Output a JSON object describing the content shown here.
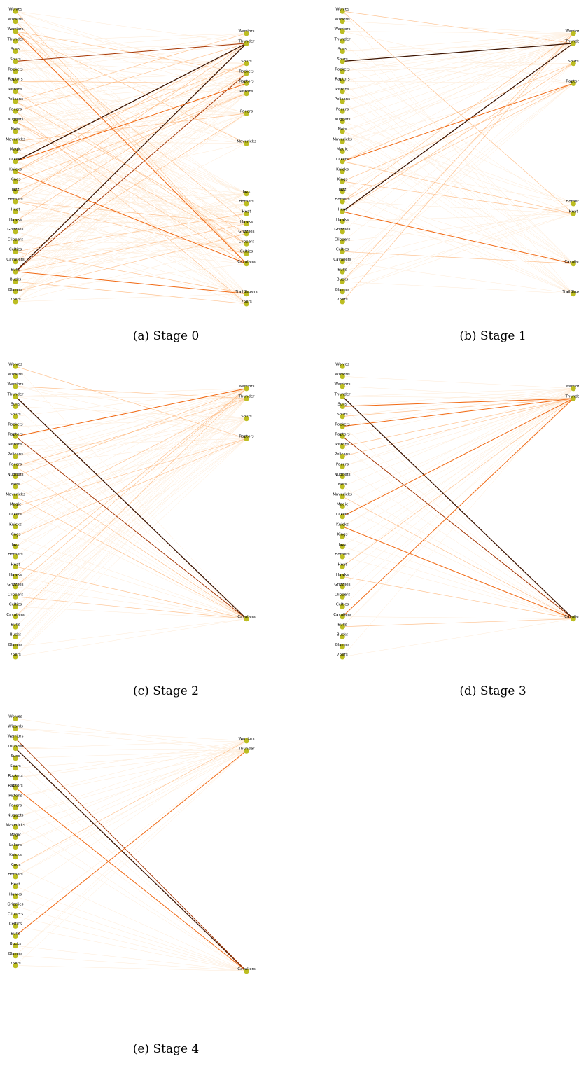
{
  "colors": {
    "node": "#bcbd22",
    "edge_scale": [
      "#fee6ce",
      "#fdae6b",
      "#f16913",
      "#a63603",
      "#3d1400"
    ]
  },
  "left_nodes": [
    "Wolves",
    "Wizards",
    "Warriors",
    "Thunder",
    "Suns",
    "Spurs",
    "Rockets",
    "Raptors",
    "Pistons",
    "Pelicans",
    "Pacers",
    "Nuggets",
    "Nets",
    "Mavericks",
    "Magic",
    "Lakers",
    "Knicks",
    "Kings",
    "Jazz",
    "Hornets",
    "Heat",
    "Hawks",
    "Grizzlies",
    "Clippers",
    "Celtics",
    "Cavaliers",
    "Bulls",
    "Bucks",
    "Blazers",
    "76ers"
  ],
  "left_nodes_stage4": [
    "Wolves",
    "Wizards",
    "Warriors",
    "Thunder",
    "Suns",
    "Spurs",
    "Rockets",
    "Raptors",
    "Pistons",
    "Pacers",
    "Nuggets",
    "Mavericks",
    "Magic",
    "Lakers",
    "Knicks",
    "Kings",
    "Hornets",
    "Heat",
    "Hawks",
    "Grizzlies",
    "Clippers",
    "Celtics",
    "Bulls",
    "Bucks",
    "Blazers",
    "76ers"
  ],
  "stages": [
    {
      "caption": "(a) Stage 0",
      "right_nodes": [
        {
          "label": "Warriors",
          "slot": 2
        },
        {
          "label": "Thunder",
          "slot": 3
        },
        {
          "label": "Spurs",
          "slot": 5
        },
        {
          "label": "Rockets",
          "slot": 6
        },
        {
          "label": "Raptors",
          "slot": 7
        },
        {
          "label": "Pistons",
          "slot": 8
        },
        {
          "label": "Pacers",
          "slot": 10
        },
        {
          "label": "Mavericks",
          "slot": 13
        },
        {
          "label": "Jazz",
          "slot": 18
        },
        {
          "label": "Hornets",
          "slot": 19
        },
        {
          "label": "Heat",
          "slot": 20
        },
        {
          "label": "Hawks",
          "slot": 21
        },
        {
          "label": "Grizzlies",
          "slot": 22
        },
        {
          "label": "Clippers",
          "slot": 23
        },
        {
          "label": "Celtics",
          "slot": 24
        },
        {
          "label": "Cavaliers",
          "slot": 25
        },
        {
          "label": "TrailBlazers",
          "slot": 28
        },
        {
          "label": "76ers",
          "slot": 29
        }
      ],
      "strong_edges": [
        {
          "from": "Lakers",
          "to": "Thunder",
          "level": 4
        },
        {
          "from": "Bulls",
          "to": "Thunder",
          "level": 4
        },
        {
          "from": "Spurs",
          "to": "Thunder",
          "level": 3
        },
        {
          "from": "Bulls",
          "to": "Rockets",
          "level": 3
        },
        {
          "from": "Knicks",
          "to": "Cavaliers",
          "level": 2
        },
        {
          "from": "Lakers",
          "to": "Raptors",
          "level": 2
        },
        {
          "from": "Bulls",
          "to": "TrailBlazers",
          "level": 2
        },
        {
          "from": "Warriors",
          "to": "Cavaliers",
          "level": 2
        }
      ],
      "edge_density": 0.34
    },
    {
      "caption": "(b) Stage 1",
      "right_nodes": [
        {
          "label": "Warriors",
          "slot": 2
        },
        {
          "label": "Thunder",
          "slot": 3
        },
        {
          "label": "Spurs",
          "slot": 5
        },
        {
          "label": "Raptors",
          "slot": 7
        },
        {
          "label": "Hornets",
          "slot": 19
        },
        {
          "label": "Heat",
          "slot": 20
        },
        {
          "label": "Cavaliers",
          "slot": 25
        },
        {
          "label": "TrailBlazers",
          "slot": 28
        }
      ],
      "strong_edges": [
        {
          "from": "Spurs",
          "to": "Thunder",
          "level": 4
        },
        {
          "from": "Heat",
          "to": "Thunder",
          "level": 4
        },
        {
          "from": "Heat",
          "to": "Cavaliers",
          "level": 2
        },
        {
          "from": "Lakers",
          "to": "Raptors",
          "level": 2
        }
      ],
      "edge_density": 0.42
    },
    {
      "caption": "(c) Stage 2",
      "right_nodes": [
        {
          "label": "Warriors",
          "slot": 2
        },
        {
          "label": "Thunder",
          "slot": 3
        },
        {
          "label": "Spurs",
          "slot": 5
        },
        {
          "label": "Raptors",
          "slot": 7
        },
        {
          "label": "Cavaliers",
          "slot": 25
        }
      ],
      "strong_edges": [
        {
          "from": "Thunder",
          "to": "Cavaliers",
          "level": 4
        },
        {
          "from": "Raptors",
          "to": "Cavaliers",
          "level": 3
        },
        {
          "from": "Raptors",
          "to": "Warriors",
          "level": 2
        }
      ],
      "edge_density": 0.55
    },
    {
      "caption": "(d) Stage 3",
      "right_nodes": [
        {
          "label": "Warriors",
          "slot": 2
        },
        {
          "label": "Thunder",
          "slot": 3
        },
        {
          "label": "Cavaliers",
          "slot": 25
        }
      ],
      "strong_edges": [
        {
          "from": "Thunder",
          "to": "Cavaliers",
          "level": 4
        },
        {
          "from": "Raptors",
          "to": "Cavaliers",
          "level": 3
        },
        {
          "from": "Rockets",
          "to": "Thunder",
          "level": 2
        },
        {
          "from": "Knicks",
          "to": "Cavaliers",
          "level": 2
        },
        {
          "from": "Cavaliers",
          "to": "Thunder",
          "level": 2
        },
        {
          "from": "Lakers",
          "to": "Thunder",
          "level": 2
        },
        {
          "from": "Suns",
          "to": "Thunder",
          "level": 2
        }
      ],
      "edge_density": 0.6
    },
    {
      "caption": "(e) Stage 4",
      "right_nodes": [
        {
          "label": "Warriors",
          "slot": 2
        },
        {
          "label": "Thunder",
          "slot": 3
        },
        {
          "label": "Cavaliers",
          "slot": 25
        }
      ],
      "strong_edges": [
        {
          "from": "Thunder",
          "to": "Cavaliers",
          "level": 4
        },
        {
          "from": "Warriors",
          "to": "Cavaliers",
          "level": 3
        },
        {
          "from": "Raptors",
          "to": "Cavaliers",
          "level": 2
        },
        {
          "from": "Bulls",
          "to": "Thunder",
          "level": 2
        }
      ],
      "edge_density": 0.5
    }
  ]
}
